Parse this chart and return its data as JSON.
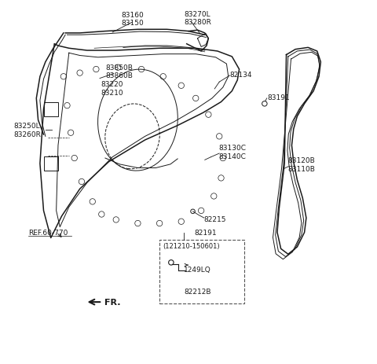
{
  "bg_color": "#ffffff",
  "line_color": "#1a1a1a",
  "fig_width": 4.8,
  "fig_height": 4.64,
  "dpi": 100,
  "labels": {
    "83160_83150": "83160\n83150",
    "83270L_83280R": "83270L\n83280R",
    "82134": "82134",
    "83191": "83191",
    "83850B_83860B": "83850B\n83860B",
    "83220_83210": "83220\n83210",
    "83250L_83260R": "83250L\n83260R",
    "83130C_83140C": "83130C\n83140C",
    "83120B_83110B": "83120B\n83110B",
    "82215": "82215",
    "82191": "82191",
    "121210_150601": "(121210-150601)",
    "1249LQ": "1249LQ",
    "82212B": "82212B",
    "REF60_770": "REF.60-770",
    "FR": "FR."
  },
  "lw_thin": 0.7,
  "lw_med": 1.1,
  "lw_thick": 1.6,
  "font_size": 6.5,
  "font_size_sm": 6.0
}
